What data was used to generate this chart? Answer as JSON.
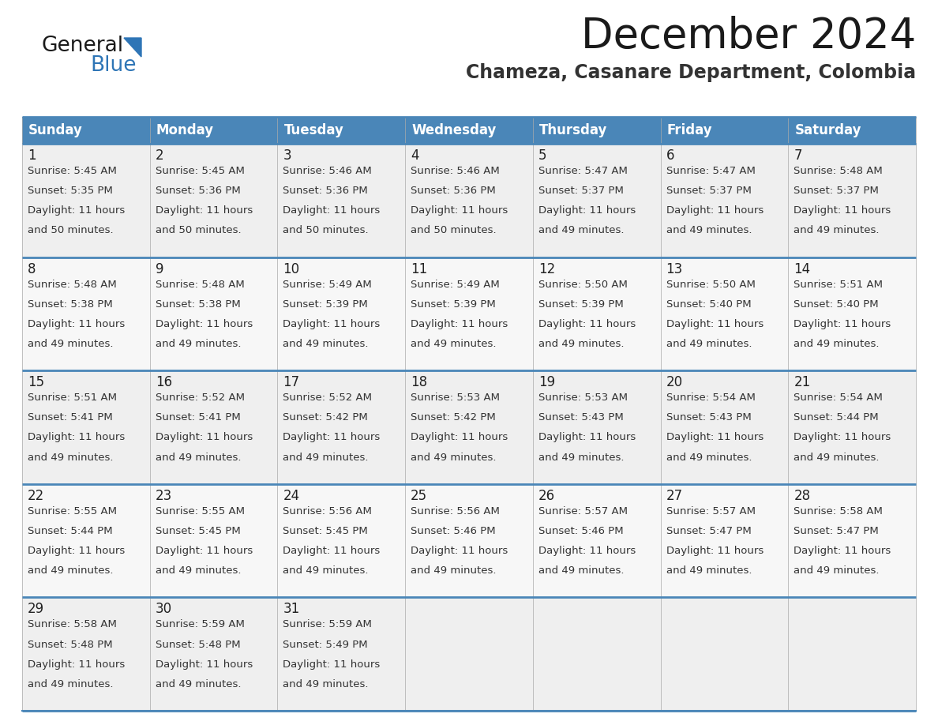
{
  "title": "December 2024",
  "subtitle": "Chameza, Casanare Department, Colombia",
  "header_color": "#4A86B8",
  "header_text_color": "#FFFFFF",
  "cell_bg_even": "#EFEFEF",
  "cell_bg_odd": "#F7F7F7",
  "border_color": "#4A86B8",
  "light_border_color": "#AAAAAA",
  "day_headers": [
    "Sunday",
    "Monday",
    "Tuesday",
    "Wednesday",
    "Thursday",
    "Friday",
    "Saturday"
  ],
  "days": [
    {
      "day": 1,
      "col": 0,
      "row": 0,
      "sunrise": "5:45 AM",
      "sunset": "5:35 PM",
      "daylight_mins": "50"
    },
    {
      "day": 2,
      "col": 1,
      "row": 0,
      "sunrise": "5:45 AM",
      "sunset": "5:36 PM",
      "daylight_mins": "50"
    },
    {
      "day": 3,
      "col": 2,
      "row": 0,
      "sunrise": "5:46 AM",
      "sunset": "5:36 PM",
      "daylight_mins": "50"
    },
    {
      "day": 4,
      "col": 3,
      "row": 0,
      "sunrise": "5:46 AM",
      "sunset": "5:36 PM",
      "daylight_mins": "50"
    },
    {
      "day": 5,
      "col": 4,
      "row": 0,
      "sunrise": "5:47 AM",
      "sunset": "5:37 PM",
      "daylight_mins": "49"
    },
    {
      "day": 6,
      "col": 5,
      "row": 0,
      "sunrise": "5:47 AM",
      "sunset": "5:37 PM",
      "daylight_mins": "49"
    },
    {
      "day": 7,
      "col": 6,
      "row": 0,
      "sunrise": "5:48 AM",
      "sunset": "5:37 PM",
      "daylight_mins": "49"
    },
    {
      "day": 8,
      "col": 0,
      "row": 1,
      "sunrise": "5:48 AM",
      "sunset": "5:38 PM",
      "daylight_mins": "49"
    },
    {
      "day": 9,
      "col": 1,
      "row": 1,
      "sunrise": "5:48 AM",
      "sunset": "5:38 PM",
      "daylight_mins": "49"
    },
    {
      "day": 10,
      "col": 2,
      "row": 1,
      "sunrise": "5:49 AM",
      "sunset": "5:39 PM",
      "daylight_mins": "49"
    },
    {
      "day": 11,
      "col": 3,
      "row": 1,
      "sunrise": "5:49 AM",
      "sunset": "5:39 PM",
      "daylight_mins": "49"
    },
    {
      "day": 12,
      "col": 4,
      "row": 1,
      "sunrise": "5:50 AM",
      "sunset": "5:39 PM",
      "daylight_mins": "49"
    },
    {
      "day": 13,
      "col": 5,
      "row": 1,
      "sunrise": "5:50 AM",
      "sunset": "5:40 PM",
      "daylight_mins": "49"
    },
    {
      "day": 14,
      "col": 6,
      "row": 1,
      "sunrise": "5:51 AM",
      "sunset": "5:40 PM",
      "daylight_mins": "49"
    },
    {
      "day": 15,
      "col": 0,
      "row": 2,
      "sunrise": "5:51 AM",
      "sunset": "5:41 PM",
      "daylight_mins": "49"
    },
    {
      "day": 16,
      "col": 1,
      "row": 2,
      "sunrise": "5:52 AM",
      "sunset": "5:41 PM",
      "daylight_mins": "49"
    },
    {
      "day": 17,
      "col": 2,
      "row": 2,
      "sunrise": "5:52 AM",
      "sunset": "5:42 PM",
      "daylight_mins": "49"
    },
    {
      "day": 18,
      "col": 3,
      "row": 2,
      "sunrise": "5:53 AM",
      "sunset": "5:42 PM",
      "daylight_mins": "49"
    },
    {
      "day": 19,
      "col": 4,
      "row": 2,
      "sunrise": "5:53 AM",
      "sunset": "5:43 PM",
      "daylight_mins": "49"
    },
    {
      "day": 20,
      "col": 5,
      "row": 2,
      "sunrise": "5:54 AM",
      "sunset": "5:43 PM",
      "daylight_mins": "49"
    },
    {
      "day": 21,
      "col": 6,
      "row": 2,
      "sunrise": "5:54 AM",
      "sunset": "5:44 PM",
      "daylight_mins": "49"
    },
    {
      "day": 22,
      "col": 0,
      "row": 3,
      "sunrise": "5:55 AM",
      "sunset": "5:44 PM",
      "daylight_mins": "49"
    },
    {
      "day": 23,
      "col": 1,
      "row": 3,
      "sunrise": "5:55 AM",
      "sunset": "5:45 PM",
      "daylight_mins": "49"
    },
    {
      "day": 24,
      "col": 2,
      "row": 3,
      "sunrise": "5:56 AM",
      "sunset": "5:45 PM",
      "daylight_mins": "49"
    },
    {
      "day": 25,
      "col": 3,
      "row": 3,
      "sunrise": "5:56 AM",
      "sunset": "5:46 PM",
      "daylight_mins": "49"
    },
    {
      "day": 26,
      "col": 4,
      "row": 3,
      "sunrise": "5:57 AM",
      "sunset": "5:46 PM",
      "daylight_mins": "49"
    },
    {
      "day": 27,
      "col": 5,
      "row": 3,
      "sunrise": "5:57 AM",
      "sunset": "5:47 PM",
      "daylight_mins": "49"
    },
    {
      "day": 28,
      "col": 6,
      "row": 3,
      "sunrise": "5:58 AM",
      "sunset": "5:47 PM",
      "daylight_mins": "49"
    },
    {
      "day": 29,
      "col": 0,
      "row": 4,
      "sunrise": "5:58 AM",
      "sunset": "5:48 PM",
      "daylight_mins": "49"
    },
    {
      "day": 30,
      "col": 1,
      "row": 4,
      "sunrise": "5:59 AM",
      "sunset": "5:48 PM",
      "daylight_mins": "49"
    },
    {
      "day": 31,
      "col": 2,
      "row": 4,
      "sunrise": "5:59 AM",
      "sunset": "5:49 PM",
      "daylight_mins": "49"
    }
  ],
  "logo_text1": "General",
  "logo_text2": "Blue",
  "bg_color": "#FFFFFF",
  "title_fontsize": 38,
  "subtitle_fontsize": 17,
  "header_fontsize": 12,
  "day_number_fontsize": 12,
  "cell_text_fontsize": 9.5
}
